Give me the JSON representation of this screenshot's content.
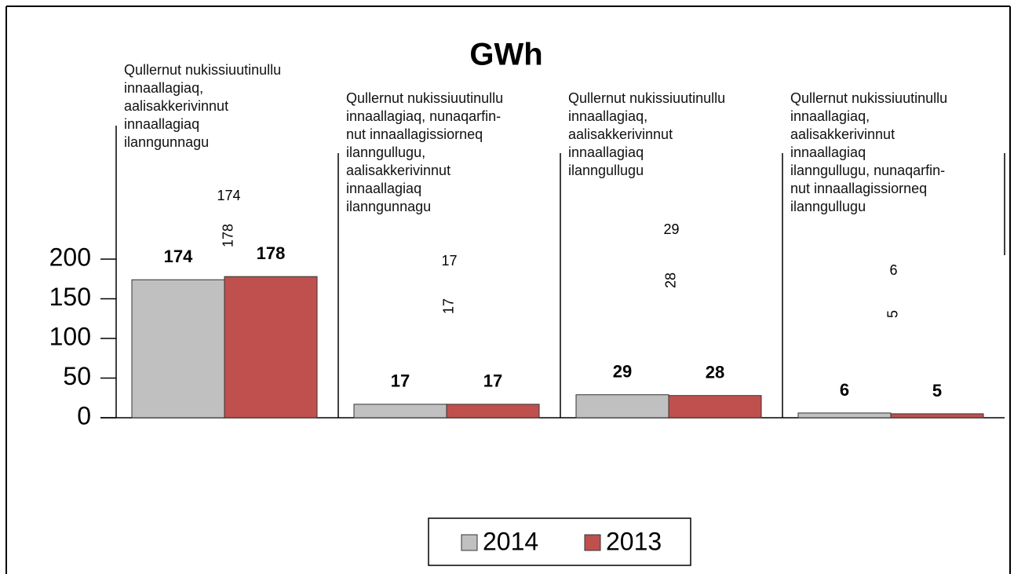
{
  "chart_data": {
    "type": "bar",
    "title": "GWh",
    "categories": [
      "Qullernut nukissiuutinullu\ninnaallagiaq,\naalisakkerivinnut\ninnaallagiaq\nilanngunnagu",
      "Qullernut nukissiuutinullu\ninnaallagiaq, nunaqarfin-\nnut innaallagissiorneq\nilanngullugu,\naalisakkerivinnut\ninnaallagiaq\nilanngunnagu",
      "Qullernut nukissiuutinullu\ninnaallagiaq,\naalisakkerivinnut\ninnaallagiaq\nilanngullugu",
      "Qullernut nukissiuutinullu\ninnaallagiaq,\naalisakkerivinnut\ninnaallagiaq\nilanngullugu, nunaqarfin-\nnut innaallagissiorneq\nilanngullugu"
    ],
    "series": [
      {
        "name": "2014",
        "color": "#c0c0c0",
        "values": [
          174,
          17,
          29,
          6
        ]
      },
      {
        "name": "2013",
        "color": "#c0504d",
        "values": [
          178,
          17,
          28,
          5
        ]
      }
    ],
    "ylim": [
      0,
      200
    ],
    "yticks": [
      0,
      50,
      100,
      150,
      200
    ],
    "legend": "bottom"
  }
}
